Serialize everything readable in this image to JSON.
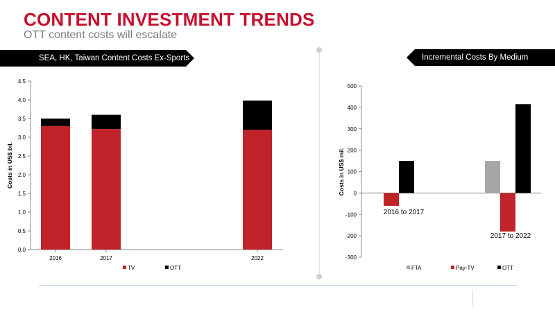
{
  "header": {
    "title": "CONTENT INVESTMENT TRENDS",
    "subtitle": "OTT content costs will escalate"
  },
  "banners": {
    "left": "SEA, HK, Taiwan Content Costs Ex-Sports",
    "right": "Incremental Costs By Medium"
  },
  "colors": {
    "title": "#c8102e",
    "tv": "#c0232a",
    "ott": "#000000",
    "fta": "#a6a6a6",
    "paytv": "#c0232a"
  },
  "chart_data": [
    {
      "type": "bar",
      "stacked": true,
      "categories": [
        "2016",
        "2017",
        "2022"
      ],
      "series": [
        {
          "name": "TV",
          "values": [
            3.3,
            3.22,
            3.2
          ]
        },
        {
          "name": "OTT",
          "values": [
            0.2,
            0.38,
            0.78
          ]
        }
      ],
      "ylabel": "Costs in US$ bil.",
      "ylim": [
        0,
        4.5
      ],
      "yticks": [
        "0.0",
        "0.5",
        "1.0",
        "1.5",
        "2.0",
        "2.5",
        "3.0",
        "3.5",
        "4.0",
        "4.5"
      ],
      "legend": "bottom"
    },
    {
      "type": "bar",
      "categories": [
        "2016 to 2017",
        "2017 to 2022"
      ],
      "series": [
        {
          "name": "FTA",
          "values": [
            2,
            150
          ]
        },
        {
          "name": "Pay-TV",
          "values": [
            -60,
            -180
          ]
        },
        {
          "name": "OTT",
          "values": [
            150,
            415
          ]
        }
      ],
      "ylabel": "Costs in US$ mil.",
      "ylim": [
        -300,
        500
      ],
      "yticks": [
        "-300",
        "-200",
        "-100",
        "0",
        "100",
        "200",
        "300",
        "400",
        "500"
      ],
      "legend": "bottom"
    }
  ]
}
